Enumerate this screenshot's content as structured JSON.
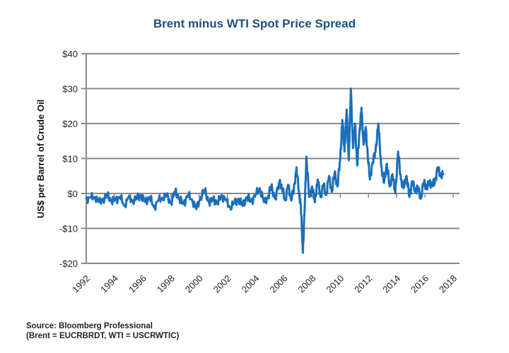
{
  "chart_data": {
    "type": "line",
    "title": "Brent minus WTI Spot Price Spread",
    "xlabel": "",
    "ylabel": "US$ per Barrel of Crude Oil",
    "xlim": [
      1992,
      2018
    ],
    "ylim": [
      -20,
      40
    ],
    "grid": true,
    "legend": "none",
    "line_color": "#1a6fba",
    "x_ticks": [
      "1992",
      "1994",
      "1996",
      "1998",
      "2000",
      "2002",
      "2004",
      "2006",
      "2008",
      "2010",
      "2012",
      "2014",
      "2016",
      "2018"
    ],
    "y_ticks": [
      {
        "value": 40,
        "label": "$40"
      },
      {
        "value": 30,
        "label": "$30"
      },
      {
        "value": 20,
        "label": "$20"
      },
      {
        "value": 10,
        "label": "$10"
      },
      {
        "value": 0,
        "label": "$0"
      },
      {
        "value": -10,
        "label": "-$10"
      },
      {
        "value": -20,
        "label": "-$20"
      }
    ],
    "series": [
      {
        "name": "Brent minus WTI spread",
        "x": [
          1992.0,
          1992.3,
          1992.6,
          1992.9,
          1993.2,
          1993.5,
          1993.8,
          1994.1,
          1994.4,
          1994.7,
          1995.0,
          1995.3,
          1995.6,
          1995.9,
          1996.2,
          1996.5,
          1996.8,
          1997.1,
          1997.4,
          1997.7,
          1998.0,
          1998.3,
          1998.6,
          1998.9,
          1999.2,
          1999.5,
          1999.8,
          2000.1,
          2000.4,
          2000.7,
          2001.0,
          2001.3,
          2001.6,
          2001.9,
          2002.2,
          2002.5,
          2002.8,
          2003.1,
          2003.4,
          2003.7,
          2004.0,
          2004.3,
          2004.6,
          2004.9,
          2005.1,
          2005.4,
          2005.7,
          2005.9,
          2006.1,
          2006.3,
          2006.5,
          2006.7,
          2006.9,
          2007.1,
          2007.2,
          2007.35,
          2007.5,
          2007.6,
          2007.8,
          2008.0,
          2008.2,
          2008.4,
          2008.6,
          2008.8,
          2009.0,
          2009.2,
          2009.4,
          2009.6,
          2009.8,
          2010.0,
          2010.15,
          2010.3,
          2010.45,
          2010.6,
          2010.75,
          2010.9,
          2011.05,
          2011.2,
          2011.35,
          2011.5,
          2011.65,
          2011.8,
          2011.95,
          2012.1,
          2012.3,
          2012.5,
          2012.7,
          2012.9,
          2013.1,
          2013.3,
          2013.5,
          2013.7,
          2013.9,
          2014.1,
          2014.3,
          2014.5,
          2014.7,
          2014.9,
          2015.1,
          2015.3,
          2015.5,
          2015.7,
          2015.9,
          2016.1,
          2016.3,
          2016.5,
          2016.7,
          2016.9,
          2017.1,
          2017.3
        ],
        "values": [
          -1.5,
          -1.2,
          -1.0,
          -2.5,
          -1.5,
          -0.8,
          -2.0,
          -1.8,
          -1.0,
          -3.5,
          -1.2,
          -2.0,
          -1.5,
          -0.5,
          -2.5,
          -1.0,
          -4.0,
          -2.0,
          -1.2,
          -0.8,
          -2.5,
          0.5,
          -1.5,
          -3.0,
          -0.5,
          -1.8,
          -4.5,
          -1.0,
          0.8,
          -2.5,
          -1.5,
          -3.0,
          -0.5,
          -2.0,
          -4.0,
          -2.8,
          -1.5,
          -3.5,
          -1.0,
          -2.2,
          -0.5,
          1.5,
          -2.5,
          -0.8,
          2.0,
          -1.5,
          3.5,
          1.0,
          -2.0,
          2.5,
          -1.5,
          0.5,
          7.5,
          -1.0,
          -3.0,
          -17.0,
          -2.0,
          10.5,
          -1.0,
          2.0,
          -2.5,
          4.0,
          -1.0,
          2.5,
          -0.5,
          5.0,
          0.5,
          6.0,
          2.0,
          10.0,
          21.0,
          12.0,
          24.0,
          9.5,
          30.0,
          13.0,
          20.0,
          8.0,
          17.0,
          24.5,
          14.0,
          19.0,
          11.0,
          4.0,
          9.0,
          12.0,
          20.0,
          8.0,
          3.0,
          8.5,
          2.0,
          5.5,
          0.0,
          12.0,
          4.0,
          1.5,
          5.0,
          -1.0,
          3.5,
          0.5,
          2.0,
          -1.5,
          3.0,
          2.0,
          3.0,
          2.5,
          3.0,
          7.5,
          5.0,
          5.5
        ]
      }
    ]
  },
  "source": {
    "line1": "Source:  Bloomberg Professional",
    "line2": "(Brent = EUCRBRDT, WTI = USCRWTIC)"
  }
}
